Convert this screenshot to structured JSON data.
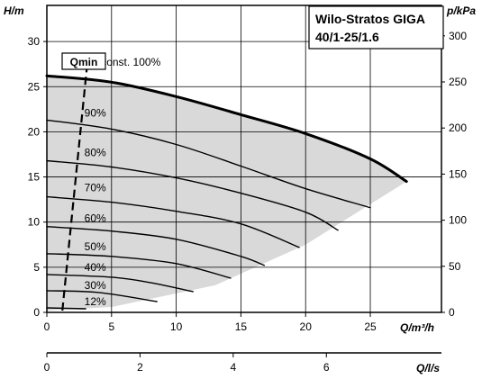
{
  "chart_data": {
    "type": "line",
    "title_lines": [
      "Wilo-Stratos GIGA",
      "40/1-25/1.6"
    ],
    "xlabel": "Q/m³/h",
    "ylabel": "H/m",
    "y2label": "p/kPa",
    "x2label": "Q/l/s",
    "xlim": [
      0,
      30.5
    ],
    "ylim": [
      0,
      34
    ],
    "x2lim": [
      0,
      8.47
    ],
    "y2lim": [
      0,
      333
    ],
    "xticks": [
      "0",
      "5",
      "10",
      "15",
      "20",
      "25"
    ],
    "yticks": [
      "0",
      "5",
      "10",
      "15",
      "20",
      "25",
      "30"
    ],
    "y2ticks": [
      "0",
      "50",
      "100",
      "150",
      "200",
      "250",
      "300"
    ],
    "x2ticks": [
      "0",
      "2",
      "4",
      "6"
    ],
    "grid": true,
    "qmin_label": "Qmin",
    "qmin_line": [
      [
        1.2,
        0.2
      ],
      [
        3.1,
        27.2
      ]
    ],
    "series": [
      {
        "name": "n=const. 100%",
        "points": [
          [
            0,
            26.2
          ],
          [
            5,
            25.5
          ],
          [
            10,
            23.9
          ],
          [
            15,
            21.9
          ],
          [
            20,
            19.8
          ],
          [
            25,
            17.0
          ],
          [
            27.8,
            14.5
          ]
        ]
      },
      {
        "name": "90%",
        "points": [
          [
            0,
            21.3
          ],
          [
            5,
            20.3
          ],
          [
            10,
            18.6
          ],
          [
            15,
            16.2
          ],
          [
            20,
            13.7
          ],
          [
            25,
            11.6
          ]
        ]
      },
      {
        "name": "80%",
        "points": [
          [
            0,
            16.8
          ],
          [
            5,
            16.1
          ],
          [
            10,
            14.9
          ],
          [
            15,
            13.2
          ],
          [
            20,
            11.1
          ],
          [
            22.5,
            9.1
          ]
        ]
      },
      {
        "name": "70%",
        "points": [
          [
            0,
            12.8
          ],
          [
            5,
            12.2
          ],
          [
            10,
            11.2
          ],
          [
            15,
            9.8
          ],
          [
            19.5,
            7.2
          ]
        ]
      },
      {
        "name": "60%",
        "points": [
          [
            0,
            9.5
          ],
          [
            5,
            9.0
          ],
          [
            10,
            8.1
          ],
          [
            15,
            6.2
          ],
          [
            16.8,
            5.2
          ]
        ]
      },
      {
        "name": "50%",
        "points": [
          [
            0,
            6.5
          ],
          [
            5,
            6.2
          ],
          [
            10,
            5.4
          ],
          [
            14.2,
            3.8
          ]
        ]
      },
      {
        "name": "40%",
        "points": [
          [
            0,
            4.2
          ],
          [
            5,
            3.9
          ],
          [
            8,
            3.3
          ],
          [
            11.3,
            2.3
          ]
        ]
      },
      {
        "name": "30%",
        "points": [
          [
            0,
            2.4
          ],
          [
            4,
            2.2
          ],
          [
            8.5,
            1.2
          ]
        ]
      },
      {
        "name": "12%",
        "points": [
          [
            0,
            0.5
          ],
          [
            3,
            0.4
          ]
        ]
      }
    ],
    "percent_labels": [
      {
        "text": "90%",
        "x": 2.9,
        "y": 21.4
      },
      {
        "text": "80%",
        "x": 2.9,
        "y": 17.0
      },
      {
        "text": "70%",
        "x": 2.9,
        "y": 13.1
      },
      {
        "text": "60%",
        "x": 2.9,
        "y": 9.7
      },
      {
        "text": "50%",
        "x": 2.9,
        "y": 6.6
      },
      {
        "text": "40%",
        "x": 2.9,
        "y": 4.3
      },
      {
        "text": "30%",
        "x": 2.9,
        "y": 2.3
      },
      {
        "text": "12%",
        "x": 2.9,
        "y": 0.5
      }
    ],
    "shading": {
      "color": "#d9d9d9",
      "boundary": [
        [
          0,
          26.2
        ],
        [
          5,
          25.5
        ],
        [
          10,
          23.9
        ],
        [
          15,
          21.9
        ],
        [
          20,
          19.8
        ],
        [
          25,
          17.0
        ],
        [
          27.8,
          14.5
        ],
        [
          20,
          7.5
        ],
        [
          13,
          3.0
        ],
        [
          5,
          0.6
        ],
        [
          0,
          0.2
        ]
      ]
    }
  }
}
